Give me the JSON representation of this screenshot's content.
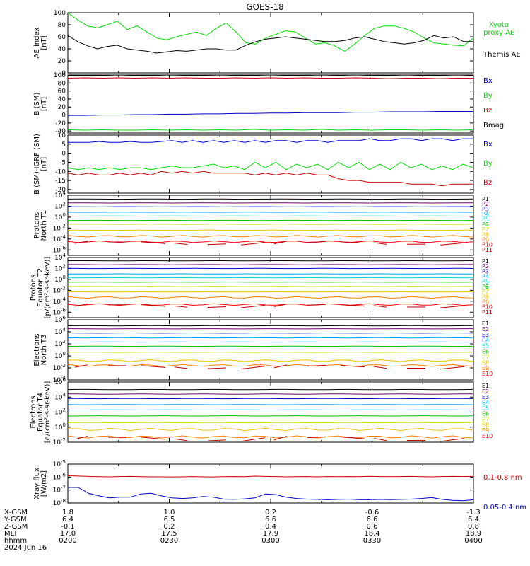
{
  "title": "GOES-18",
  "time_axis": {
    "date_label": "2024 Jun 16",
    "row_labels": [
      "X-GSM",
      "Y-GSM",
      "Z-GSM",
      "MLT",
      "hhmm"
    ],
    "ticks": [
      {
        "x_gsm": "1.8",
        "y_gsm": "6.4",
        "z_gsm": "-0.1",
        "mlt": "17.0",
        "hhmm": "0200"
      },
      {
        "x_gsm": "1.0",
        "y_gsm": "6.5",
        "z_gsm": "0.2",
        "mlt": "17.5",
        "hhmm": "0230"
      },
      {
        "x_gsm": "0.2",
        "y_gsm": "6.6",
        "z_gsm": "0.4",
        "mlt": "17.9",
        "hhmm": "0300"
      },
      {
        "x_gsm": "-0.6",
        "y_gsm": "6.6",
        "z_gsm": "0.6",
        "mlt": "18.4",
        "hhmm": "0330"
      },
      {
        "x_gsm": "-1.3",
        "y_gsm": "6.4",
        "z_gsm": "0.8",
        "mlt": "18.9",
        "hhmm": "0400"
      }
    ]
  },
  "colors": {
    "black": "#000000",
    "green": "#00dd00",
    "blue": "#0000cc",
    "red": "#cc0000",
    "energy_channels": [
      "#000000",
      "#700070",
      "#0000d0",
      "#00a0ff",
      "#00d0d0",
      "#00c000",
      "#c0e000",
      "#f0c000",
      "#ff8000",
      "#ff0000",
      "#c00000"
    ]
  },
  "chart_data": [
    {
      "type": "line",
      "panel": "ae",
      "ylabel": "AE index\n[nT]",
      "ylim": [
        0,
        100
      ],
      "yscale": "linear",
      "yticks": [
        "0",
        "20",
        "40",
        "60",
        "80",
        "100"
      ],
      "x": "time 02:00-04:00 UT",
      "series": [
        {
          "name": "Kyoto\nproxy AE",
          "color": "green",
          "values": [
            100,
            88,
            78,
            75,
            80,
            86,
            72,
            78,
            68,
            58,
            55,
            60,
            64,
            68,
            62,
            74,
            83,
            68,
            50,
            48,
            58,
            64,
            70,
            68,
            58,
            48,
            50,
            45,
            36,
            48,
            62,
            74,
            78,
            78,
            74,
            68,
            58,
            50,
            48,
            46,
            45,
            58
          ]
        },
        {
          "name": "Themis AE",
          "color": "black",
          "values": [
            62,
            52,
            45,
            40,
            44,
            46,
            40,
            38,
            36,
            33,
            35,
            37,
            36,
            38,
            40,
            40,
            38,
            38,
            46,
            52,
            56,
            58,
            60,
            58,
            56,
            54,
            52,
            52,
            54,
            58,
            60,
            56,
            52,
            50,
            48,
            50,
            54,
            62,
            58,
            60,
            52,
            52
          ]
        }
      ]
    },
    {
      "type": "line",
      "panel": "b_sm",
      "ylabel": "B (SM)\n[nT]",
      "ylim": [
        -45,
        100
      ],
      "yscale": "linear",
      "yticks": [
        "-40",
        "-20",
        "0",
        "20",
        "40",
        "60",
        "80",
        "100"
      ],
      "series": [
        {
          "name": "Bx",
          "color": "blue",
          "values": [
            -1,
            -1,
            0,
            0,
            1,
            1,
            2,
            2,
            3,
            3,
            4,
            4,
            5,
            5,
            6,
            6,
            6,
            7,
            7,
            8,
            8,
            8,
            9,
            9,
            9
          ]
        },
        {
          "name": "By",
          "color": "green",
          "values": [
            -37,
            -38,
            -37,
            -38,
            -38,
            -37,
            -38,
            -37,
            -38,
            -37,
            -38,
            -36,
            -38,
            -37,
            -38,
            -36,
            -38,
            -37,
            -38,
            -37,
            -37,
            -38,
            -37,
            -38,
            -37
          ]
        },
        {
          "name": "Bz",
          "color": "red",
          "values": [
            92,
            93,
            92,
            93,
            92,
            93,
            92,
            93,
            92,
            92,
            93,
            92,
            93,
            92,
            93,
            92,
            92,
            93,
            92,
            91,
            92,
            92,
            91,
            92,
            92
          ]
        },
        {
          "name": "Bmag",
          "color": "black",
          "values": [
            99,
            99,
            99,
            100,
            99,
            99,
            100,
            99,
            99,
            100,
            99,
            99,
            100,
            99,
            99,
            100,
            99,
            100,
            99,
            99,
            100,
            99,
            99,
            100,
            99
          ]
        }
      ]
    },
    {
      "type": "line",
      "panel": "b_sm_igrf",
      "ylabel": "B (SM)-IGRF (SM)\n[nT]",
      "ylim": [
        -22,
        10
      ],
      "yscale": "linear",
      "yticks": [
        "-20",
        "-15",
        "-10",
        "-5",
        "0",
        "5",
        "10"
      ],
      "series": [
        {
          "name": "Bx",
          "color": "blue",
          "values": [
            6,
            6,
            6,
            6.5,
            6,
            6,
            6.5,
            6,
            6,
            6.5,
            7,
            6,
            7,
            6,
            7,
            6,
            7,
            6,
            7,
            6,
            7,
            7,
            6,
            7,
            7,
            6,
            7,
            7,
            7,
            8,
            7,
            7,
            8,
            8,
            7,
            8,
            8,
            7,
            8,
            8
          ]
        },
        {
          "name": "By",
          "color": "green",
          "values": [
            -8,
            -9,
            -8,
            -9,
            -8,
            -9,
            -8,
            -8,
            -9,
            -8,
            -7,
            -8,
            -8,
            -7,
            -6,
            -8,
            -7,
            -9,
            -5,
            -8,
            -5,
            -9,
            -6,
            -8,
            -6,
            -9,
            -5,
            -8,
            -5,
            -9,
            -6,
            -9,
            -5,
            -8,
            -6,
            -9,
            -7,
            -9,
            -6,
            -8
          ]
        },
        {
          "name": "Bz",
          "color": "red",
          "values": [
            -11,
            -12,
            -11,
            -12,
            -12,
            -11,
            -12,
            -11,
            -12,
            -10,
            -11,
            -10,
            -11,
            -10,
            -11,
            -11,
            -11,
            -11,
            -12,
            -11,
            -12,
            -11,
            -12,
            -11,
            -12,
            -12,
            -14,
            -15,
            -15,
            -16,
            -16,
            -16,
            -16,
            -17,
            -17,
            -17,
            -18,
            -17,
            -17,
            -17
          ]
        }
      ]
    },
    {
      "type": "line",
      "panel": "protons_t1",
      "ylabel": "Protons\nNorth T1",
      "ylim_log10": [
        -7,
        4
      ],
      "yscale": "log",
      "yticks": [
        "10^-6",
        "10^-4",
        "10^-2",
        "10^0",
        "10^2",
        "10^4"
      ],
      "series": [
        {
          "name": "P1",
          "log10_level": 3.3
        },
        {
          "name": "P2",
          "log10_level": 2.6
        },
        {
          "name": "P3",
          "log10_level": 1.9
        },
        {
          "name": "P4",
          "log10_level": 0.9
        },
        {
          "name": "P5",
          "log10_level": 0.2
        },
        {
          "name": "P6",
          "log10_level": -0.6
        },
        {
          "name": "P7",
          "log10_level": -1.3
        },
        {
          "name": "P8",
          "log10_level": -2.4
        },
        {
          "name": "P9",
          "log10_level": -3.5
        },
        {
          "name": "P10",
          "log10_level": -4.5
        },
        {
          "name": "P11",
          "log10_level": null
        }
      ]
    },
    {
      "type": "line",
      "panel": "protons_t2",
      "ylabel": "Protons\nEquator T2\n[p/(cm²-s-sr-keV)]",
      "ylim_log10": [
        -7,
        4
      ],
      "yscale": "log",
      "yticks": [
        "10^-6",
        "10^-4",
        "10^-2",
        "10^0",
        "10^2",
        "10^4"
      ],
      "series": [
        {
          "name": "P1",
          "log10_level": 3.4
        },
        {
          "name": "P2",
          "log10_level": 2.7
        },
        {
          "name": "P3",
          "log10_level": 2.0
        },
        {
          "name": "P4",
          "log10_level": 1.0
        },
        {
          "name": "P5",
          "log10_level": 0.3
        },
        {
          "name": "P6",
          "log10_level": -0.5
        },
        {
          "name": "P7",
          "log10_level": -1.3
        },
        {
          "name": "P8",
          "log10_level": -2.3
        },
        {
          "name": "P9",
          "log10_level": -3.3
        },
        {
          "name": "P10",
          "log10_level": -4.6
        },
        {
          "name": "P11",
          "log10_level": null
        }
      ]
    },
    {
      "type": "line",
      "panel": "electrons_t3",
      "ylabel": "Electrons\nNorth T3",
      "ylim_log10": [
        -4,
        6
      ],
      "yscale": "log",
      "yticks": [
        "10^-4",
        "10^-2",
        "10^0",
        "10^2",
        "10^4",
        "10^6"
      ],
      "series": [
        {
          "name": "E1",
          "log10_level": 5.0
        },
        {
          "name": "E2",
          "log10_level": 4.5
        },
        {
          "name": "E3",
          "log10_level": 3.8
        },
        {
          "name": "E4",
          "log10_level": 3.0
        },
        {
          "name": "E5",
          "log10_level": 2.3
        },
        {
          "name": "E6",
          "log10_level": 1.6
        },
        {
          "name": "E7",
          "log10_level": 0.6
        },
        {
          "name": "E8",
          "log10_level": -0.8
        },
        {
          "name": "E9",
          "log10_level": -1.6
        },
        {
          "name": "E10",
          "log10_level": null
        }
      ]
    },
    {
      "type": "line",
      "panel": "electrons_t4",
      "ylabel": "Electrons\nEquator T4\n[e/(cm²-s-sr-keV)]",
      "ylim_log10": [
        -2,
        6
      ],
      "yscale": "log",
      "yticks": [
        "10^-2",
        "10^0",
        "10^2",
        "10^4",
        "10^6"
      ],
      "series": [
        {
          "name": "E1",
          "log10_level": 5.0
        },
        {
          "name": "E2",
          "log10_level": 4.4
        },
        {
          "name": "E3",
          "log10_level": 3.8
        },
        {
          "name": "E4",
          "log10_level": 3.0
        },
        {
          "name": "E5",
          "log10_level": 2.3
        },
        {
          "name": "E6",
          "log10_level": 1.5
        },
        {
          "name": "E7",
          "log10_level": 0.6
        },
        {
          "name": "E8",
          "log10_level": -0.3
        },
        {
          "name": "E9",
          "log10_level": -1.3
        },
        {
          "name": "E10",
          "log10_level": null
        }
      ]
    },
    {
      "type": "line",
      "panel": "xray",
      "ylabel": "Xray flux\n[W/m2]",
      "ylim_log10": [
        -8,
        -5
      ],
      "yscale": "log",
      "yticks": [
        "10^-8",
        "10^-7",
        "10^-6",
        "10^-5"
      ],
      "series": [
        {
          "name": "0.1-0.8 nm",
          "color": "red",
          "log10_values": [
            -5.9,
            -5.92,
            -5.95,
            -5.97,
            -5.98,
            -5.96,
            -5.95,
            -5.97,
            -5.98,
            -5.98,
            -5.99,
            -5.98,
            -5.96,
            -5.98,
            -5.99,
            -5.97,
            -5.96,
            -5.97,
            -5.93,
            -5.95,
            -5.96,
            -5.98,
            -5.97,
            -5.96,
            -5.98,
            -5.96,
            -5.97,
            -5.96,
            -5.97,
            -5.94,
            -5.96,
            -5.97,
            -5.96,
            -5.95,
            -5.97,
            -5.98,
            -5.96,
            -5.95,
            -5.96,
            -5.95
          ]
        },
        {
          "name": "0.05-0.4 nm",
          "color": "blue",
          "log10_values": [
            -6.8,
            -6.8,
            -7.25,
            -7.45,
            -7.6,
            -7.55,
            -7.55,
            -7.3,
            -7.25,
            -7.45,
            -7.6,
            -7.65,
            -7.6,
            -7.5,
            -7.55,
            -7.7,
            -7.72,
            -7.68,
            -7.6,
            -7.3,
            -7.35,
            -7.55,
            -7.65,
            -7.7,
            -7.72,
            -7.75,
            -7.72,
            -7.7,
            -7.74,
            -7.75,
            -7.72,
            -7.74,
            -7.72,
            -7.7,
            -7.65,
            -7.58,
            -7.72,
            -7.8,
            -7.82,
            -7.75
          ]
        }
      ]
    }
  ]
}
